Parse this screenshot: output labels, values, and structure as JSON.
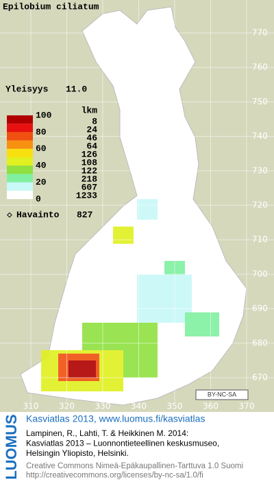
{
  "title": "Epilobium ciliatum",
  "frequency": {
    "label": "Yleisyys",
    "value": "11.0"
  },
  "legend": {
    "scale_labels": [
      100,
      80,
      60,
      40,
      20,
      0
    ],
    "count_header": "lkm",
    "counts": [
      8,
      24,
      46,
      64,
      126,
      108,
      122,
      218,
      607,
      1233
    ],
    "colors": [
      "#b00000",
      "#e81010",
      "#f05010",
      "#f89010",
      "#f8e010",
      "#e0f020",
      "#90e040",
      "#80f0a0",
      "#c8f8f8",
      "#ffffff"
    ]
  },
  "observations": {
    "label": "Havainto",
    "value": 827
  },
  "grid": {
    "northing": [
      770,
      760,
      750,
      740,
      730,
      720,
      710,
      700,
      690,
      680,
      670
    ],
    "easting": [
      310,
      320,
      330,
      340,
      350,
      360,
      370
    ]
  },
  "license_badge": "BY-NC-SA",
  "footer": {
    "brand": "LUOMUS",
    "link": "Kasviatlas 2013, www.luomus.fi/kasviatlas",
    "citation": [
      "Lampinen, R., Lahti, T. & Heikkinen M. 2014:",
      "Kasviatlas 2013 – Luonnontieteellinen keskusmuseo,",
      "Helsingin Yliopisto, Helsinki."
    ],
    "license": [
      "Creative Commons Nimeä-Epäkaupallinen-Tarttuva 1.0 Suomi",
      "http://creativecommons.org/licenses/by-nc-sa/1.0/fi"
    ]
  }
}
